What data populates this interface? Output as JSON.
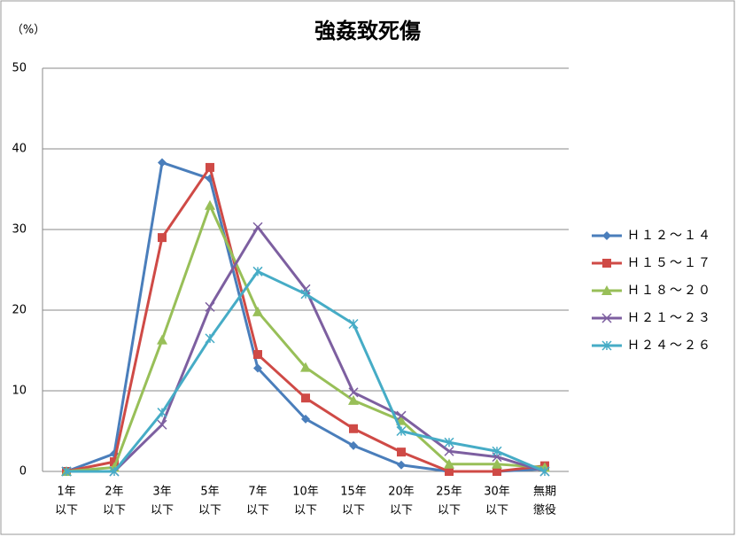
{
  "chart_data": {
    "type": "line",
    "title": "強姦致死傷",
    "y_label": "（%）",
    "categories": [
      [
        "1年",
        "以下"
      ],
      [
        "2年",
        "以下"
      ],
      [
        "3年",
        "以下"
      ],
      [
        "5年",
        "以下"
      ],
      [
        "7年",
        "以下"
      ],
      [
        "10年",
        "以下"
      ],
      [
        "15年",
        "以下"
      ],
      [
        "20年",
        "以下"
      ],
      [
        "25年",
        "以下"
      ],
      [
        "30年",
        "以下"
      ],
      [
        "無期",
        "懲役"
      ]
    ],
    "series": [
      {
        "name": "Ｈ１２～１４",
        "color": "#4a7ebb",
        "marker": "diamond",
        "values": [
          0,
          2.2,
          38.3,
          36.3,
          12.8,
          6.5,
          3.2,
          0.8,
          0,
          0,
          0.3
        ]
      },
      {
        "name": "Ｈ１５～１７",
        "color": "#cf4a46",
        "marker": "square",
        "values": [
          0,
          1.2,
          29,
          37.7,
          14.5,
          9.1,
          5.3,
          2.4,
          0,
          0,
          0.7
        ]
      },
      {
        "name": "Ｈ１８～２０",
        "color": "#98bf58",
        "marker": "triangle",
        "values": [
          0,
          0.5,
          16.3,
          33,
          19.8,
          12.9,
          8.8,
          6.3,
          0.9,
          0.9,
          0.5
        ]
      },
      {
        "name": "Ｈ２１～２３",
        "color": "#7d5fa0",
        "marker": "x",
        "values": [
          0,
          0,
          5.8,
          20.4,
          30.3,
          22.6,
          9.8,
          6.9,
          2.5,
          1.8,
          0
        ]
      },
      {
        "name": "Ｈ２４～２６",
        "color": "#46acc6",
        "marker": "star",
        "values": [
          0,
          0,
          7.3,
          16.5,
          24.8,
          22,
          18.3,
          5,
          3.6,
          2.5,
          0
        ]
      }
    ],
    "ylim": [
      0,
      50
    ],
    "yticks": [
      0,
      10,
      20,
      30,
      40,
      50
    ],
    "grid": true,
    "legend": "right"
  }
}
